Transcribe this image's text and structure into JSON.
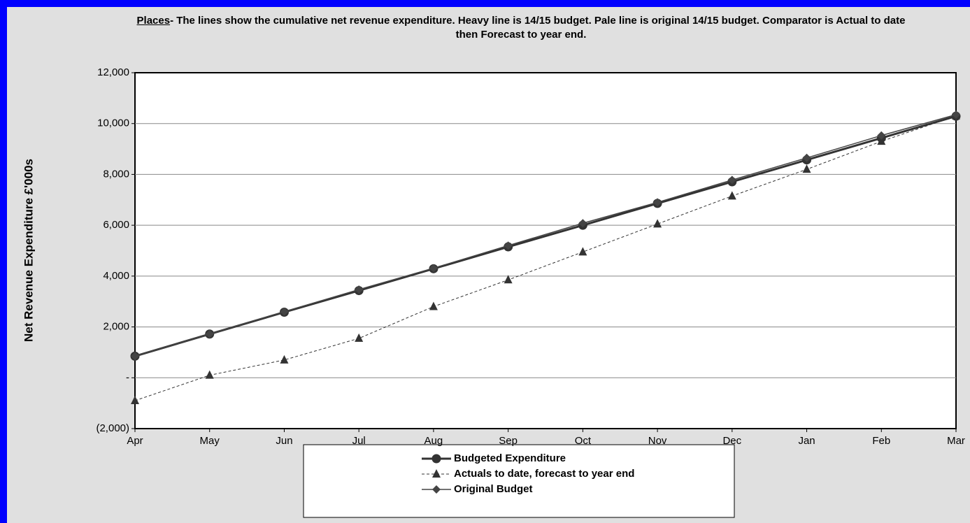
{
  "chart_data": {
    "type": "line",
    "title_link": "Places",
    "title": "- The lines show the cumulative net revenue expenditure. Heavy line is 14/15 budget. Pale line is original 14/15  budget. Comparator is Actual to date then Forecast to year end.",
    "y_label": "Net Revenue Expenditure £'000s",
    "categories": [
      "Apr",
      "May",
      "Jun",
      "Jul",
      "Aug",
      "Sep",
      "Oct",
      "Nov",
      "Dec",
      "Jan",
      "Feb",
      "Mar"
    ],
    "series": [
      {
        "name": "Budgeted Expenditure",
        "color": "#333333",
        "marker": "circle",
        "style": "heavy",
        "values": [
          850,
          1720,
          2580,
          3430,
          4290,
          5150,
          6000,
          6860,
          7710,
          8570,
          9430,
          10290
        ]
      },
      {
        "name": "Actuals to date, forecast to year end",
        "color": "#333333",
        "marker": "triangle",
        "style": "dashed",
        "values": [
          -900,
          100,
          700,
          1550,
          2800,
          3850,
          4950,
          6050,
          7150,
          8200,
          9300,
          10300
        ]
      },
      {
        "name": "Original Budget",
        "color": "#444444",
        "marker": "diamond",
        "style": "thin",
        "values": [
          850,
          1720,
          2600,
          3470,
          4310,
          5200,
          6080,
          6900,
          7780,
          8650,
          9530,
          10350
        ]
      }
    ],
    "ylim": [
      -2000,
      12000
    ],
    "yticks": [
      {
        "value": -2000,
        "label": "(2,000)"
      },
      {
        "value": 0,
        "label": "-"
      },
      {
        "value": 2000,
        "label": "2,000"
      },
      {
        "value": 4000,
        "label": "4,000"
      },
      {
        "value": 6000,
        "label": "6,000"
      },
      {
        "value": 8000,
        "label": "8,000"
      },
      {
        "value": 10000,
        "label": "10,000"
      },
      {
        "value": 12000,
        "label": "12,000"
      }
    ],
    "grid": true,
    "legend": "bottom"
  }
}
